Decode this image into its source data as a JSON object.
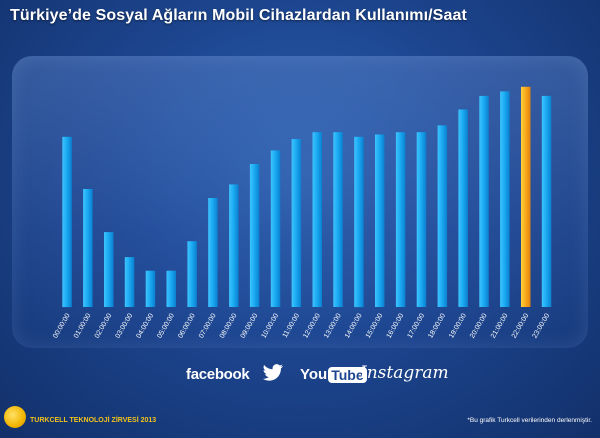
{
  "header": {
    "title": "Türkiye’de Sosyal Ağların Mobil Cihazlardan Kullanımı/Saat"
  },
  "logos": {
    "facebook": "facebook",
    "twitter_icon": "twitter-bird-icon",
    "youtube_you": "You",
    "youtube_tube": "Tube",
    "instagram": "Instagram"
  },
  "footer": {
    "brand": "TURKCELL TEKNOLOJİ ZİRVESİ 2013",
    "note": "*Bu grafik Turkcell verilerinden derlenmiştir."
  },
  "colors": {
    "bar": "#17a9f2",
    "highlight": "#f7a81b"
  },
  "chart_data": {
    "type": "bar",
    "title": "Türkiye’de Sosyal Ağların Mobil Cihazlardan Kullanımı/Saat",
    "xlabel": "",
    "ylabel": "",
    "categories": [
      "00:00:00",
      "01:00:00",
      "02:00:00",
      "03:00:00",
      "04:00:00",
      "05:00:00",
      "06:00:00",
      "07:00:00",
      "08:00:00",
      "09:00:00",
      "10:00:00",
      "11:00:00",
      "12:00:00",
      "13:00:00",
      "14:00:00",
      "15:00:00",
      "16:00:00",
      "17:00:00",
      "18:00:00",
      "19:00:00",
      "20:00:00",
      "21:00:00",
      "22:00:00",
      "23:00:00"
    ],
    "values": [
      75,
      52,
      33,
      22,
      16,
      16,
      29,
      48,
      54,
      63,
      69,
      74,
      77,
      77,
      75,
      76,
      77,
      77,
      80,
      87,
      93,
      95,
      97,
      93
    ],
    "highlight_index": 22,
    "ylim": [
      0,
      100
    ],
    "grid": false
  }
}
